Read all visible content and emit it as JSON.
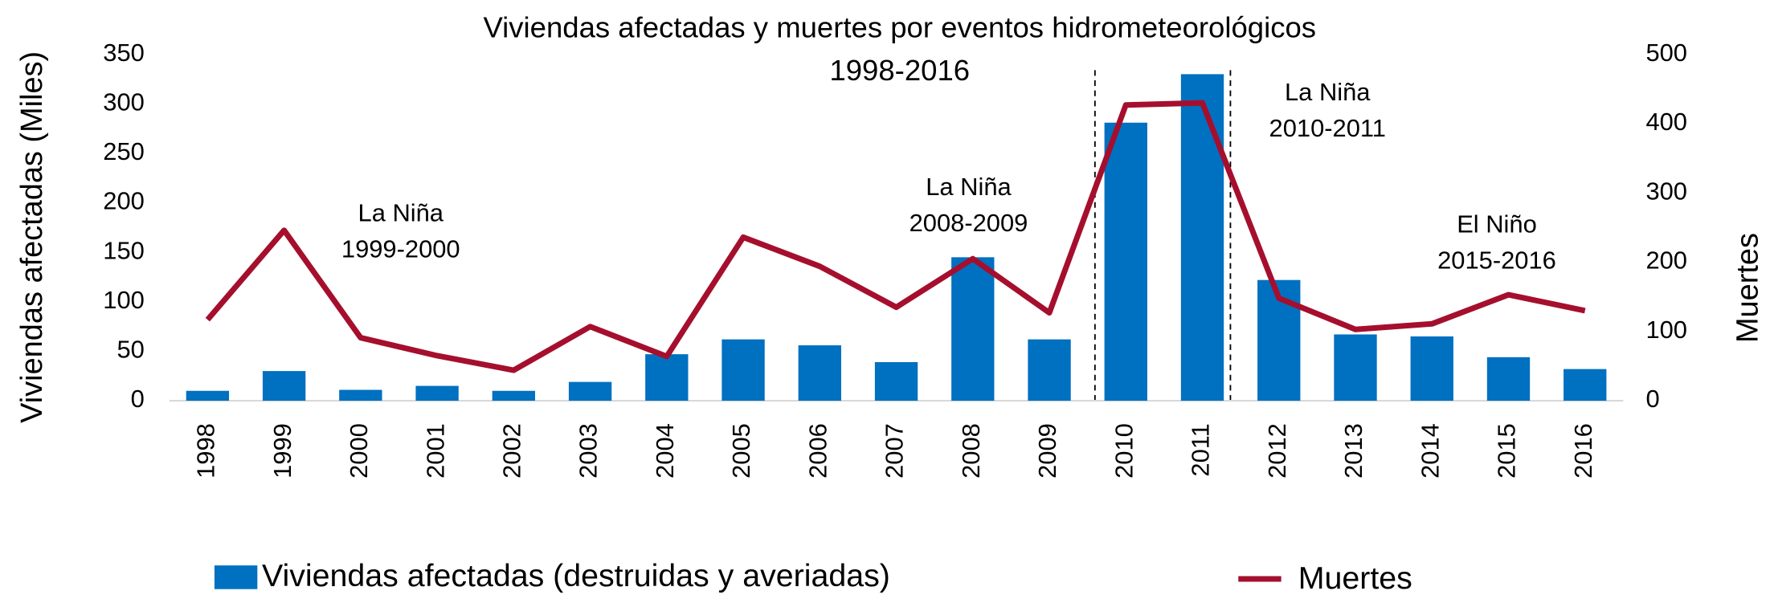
{
  "chart_data": {
    "type": "bar_line",
    "title": "Viviendas afectadas y muertes por eventos hidrometeorológicos",
    "subtitle": "1998-2016",
    "y_label": "Viviendas afectadas (Miles)",
    "y2_label": "Muertes",
    "categories": [
      "1998",
      "1999",
      "2000",
      "2001",
      "2002",
      "2003",
      "2004",
      "2005",
      "2006",
      "2007",
      "2008",
      "2009",
      "2010",
      "2011",
      "2012",
      "2013",
      "2014",
      "2015",
      "2016"
    ],
    "series": [
      {
        "name": "Viviendas afectadas (destruidas y averiadas)",
        "type": "bar",
        "color": "#0070c0",
        "axis": "y",
        "values": [
          10,
          30,
          11,
          15,
          10,
          19,
          47,
          62,
          56,
          39,
          145,
          62,
          281,
          330,
          122,
          67,
          65,
          44,
          32
        ]
      },
      {
        "name": "Muertes",
        "type": "line",
        "color": "#a50f2d",
        "axis": "y2",
        "values": [
          117,
          246,
          91,
          65,
          44,
          107,
          64,
          236,
          194,
          135,
          205,
          127,
          427,
          430,
          148,
          103,
          111,
          153,
          130
        ]
      }
    ],
    "ylim": [
      0,
      350
    ],
    "yticks": [
      0,
      50,
      100,
      150,
      200,
      250,
      300,
      350
    ],
    "y2lim": [
      0,
      500
    ],
    "y2ticks": [
      0,
      100,
      200,
      300,
      400,
      500
    ],
    "annotations": [
      [
        "La Niña",
        "1999-2000"
      ],
      [
        "La Niña",
        "2008-2009"
      ],
      [
        "La Niña",
        "2010-2011"
      ],
      [
        "El Niño",
        "2015-2016"
      ]
    ]
  }
}
